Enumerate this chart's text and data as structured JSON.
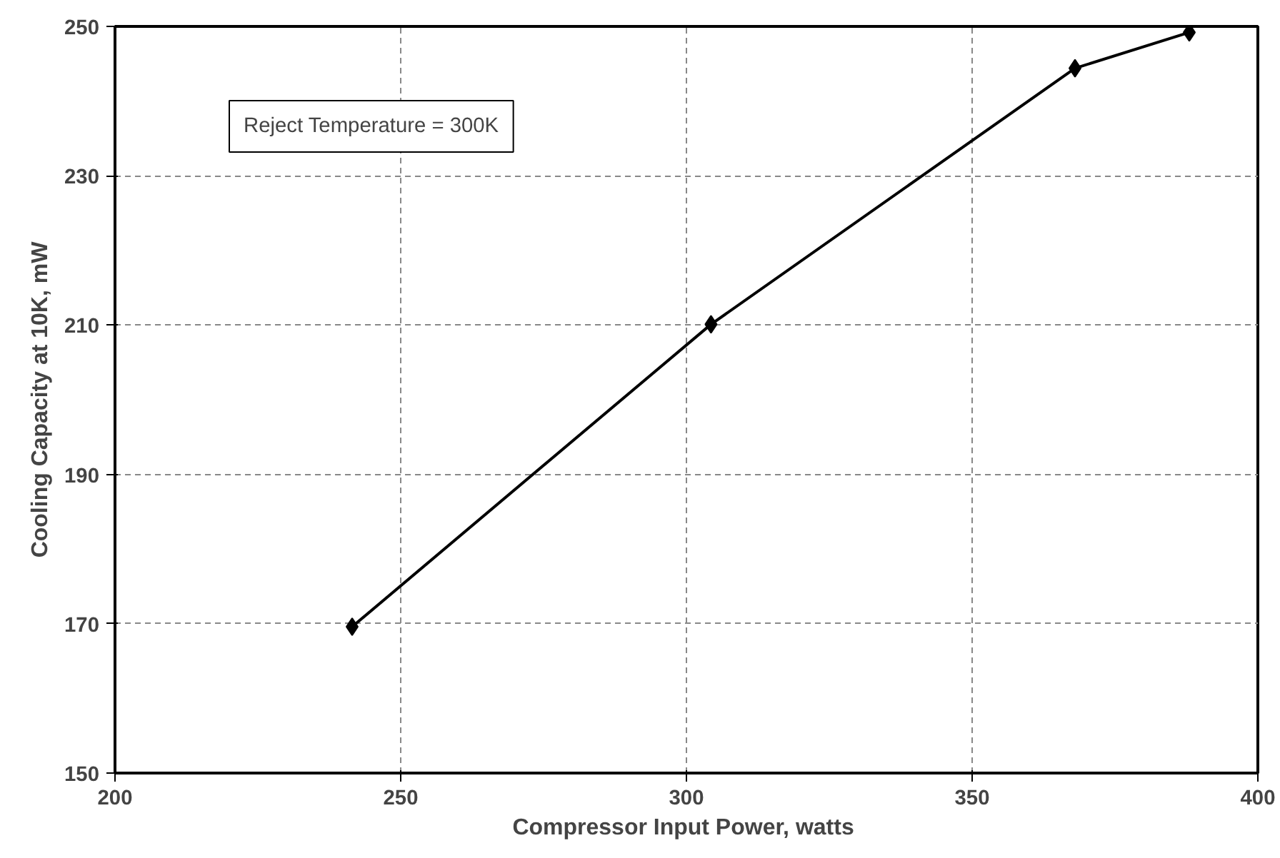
{
  "chart_data": {
    "type": "line",
    "xlabel": "Compressor Input Power,  watts",
    "ylabel": "Cooling Capacity at 10K, mW",
    "annotations": [
      "Reject Temperature = 300K"
    ],
    "x": [
      241.5,
      304.3,
      368,
      388
    ],
    "series": [
      {
        "color": "#000000",
        "values": [
          169.6,
          210.1,
          244.4,
          249.2
        ]
      }
    ],
    "xlim": [
      200,
      400
    ],
    "xticks": [
      200,
      250,
      300,
      350,
      400
    ],
    "ylim": [
      150,
      250
    ],
    "yticks": [
      150,
      170,
      190,
      210,
      230,
      250
    ],
    "grid": true,
    "marker": "diamond",
    "line_style": "solid"
  }
}
